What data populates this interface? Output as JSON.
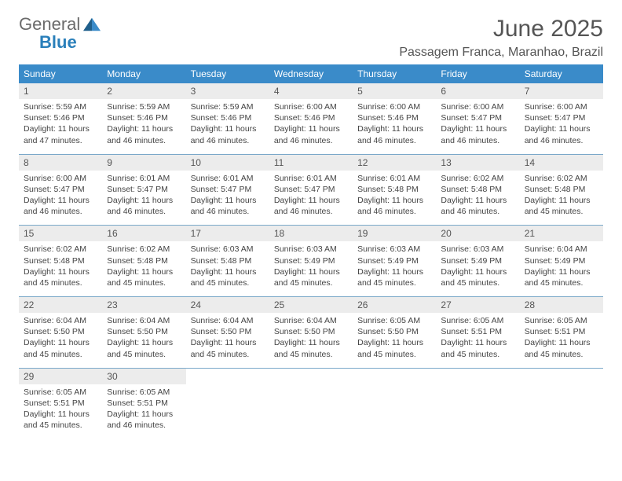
{
  "logo": {
    "word1": "General",
    "word2": "Blue"
  },
  "title": "June 2025",
  "location": "Passagem Franca, Maranhao, Brazil",
  "colors": {
    "header_bg": "#3a8bc9",
    "header_text": "#ffffff",
    "daynum_bg": "#ececec",
    "separator": "#7aa8c9",
    "logo_gray": "#6b6b6b",
    "logo_blue": "#2a7fba",
    "body_text": "#444444"
  },
  "typography": {
    "title_fontsize": 30,
    "location_fontsize": 16,
    "dayheader_fontsize": 12,
    "daynum_fontsize": 12,
    "detail_fontsize": 10.5
  },
  "day_headers": [
    "Sunday",
    "Monday",
    "Tuesday",
    "Wednesday",
    "Thursday",
    "Friday",
    "Saturday"
  ],
  "weeks": [
    {
      "nums": [
        "1",
        "2",
        "3",
        "4",
        "5",
        "6",
        "7"
      ],
      "details": [
        "Sunrise: 5:59 AM\nSunset: 5:46 PM\nDaylight: 11 hours and 47 minutes.",
        "Sunrise: 5:59 AM\nSunset: 5:46 PM\nDaylight: 11 hours and 46 minutes.",
        "Sunrise: 5:59 AM\nSunset: 5:46 PM\nDaylight: 11 hours and 46 minutes.",
        "Sunrise: 6:00 AM\nSunset: 5:46 PM\nDaylight: 11 hours and 46 minutes.",
        "Sunrise: 6:00 AM\nSunset: 5:46 PM\nDaylight: 11 hours and 46 minutes.",
        "Sunrise: 6:00 AM\nSunset: 5:47 PM\nDaylight: 11 hours and 46 minutes.",
        "Sunrise: 6:00 AM\nSunset: 5:47 PM\nDaylight: 11 hours and 46 minutes."
      ]
    },
    {
      "nums": [
        "8",
        "9",
        "10",
        "11",
        "12",
        "13",
        "14"
      ],
      "details": [
        "Sunrise: 6:00 AM\nSunset: 5:47 PM\nDaylight: 11 hours and 46 minutes.",
        "Sunrise: 6:01 AM\nSunset: 5:47 PM\nDaylight: 11 hours and 46 minutes.",
        "Sunrise: 6:01 AM\nSunset: 5:47 PM\nDaylight: 11 hours and 46 minutes.",
        "Sunrise: 6:01 AM\nSunset: 5:47 PM\nDaylight: 11 hours and 46 minutes.",
        "Sunrise: 6:01 AM\nSunset: 5:48 PM\nDaylight: 11 hours and 46 minutes.",
        "Sunrise: 6:02 AM\nSunset: 5:48 PM\nDaylight: 11 hours and 46 minutes.",
        "Sunrise: 6:02 AM\nSunset: 5:48 PM\nDaylight: 11 hours and 45 minutes."
      ]
    },
    {
      "nums": [
        "15",
        "16",
        "17",
        "18",
        "19",
        "20",
        "21"
      ],
      "details": [
        "Sunrise: 6:02 AM\nSunset: 5:48 PM\nDaylight: 11 hours and 45 minutes.",
        "Sunrise: 6:02 AM\nSunset: 5:48 PM\nDaylight: 11 hours and 45 minutes.",
        "Sunrise: 6:03 AM\nSunset: 5:48 PM\nDaylight: 11 hours and 45 minutes.",
        "Sunrise: 6:03 AM\nSunset: 5:49 PM\nDaylight: 11 hours and 45 minutes.",
        "Sunrise: 6:03 AM\nSunset: 5:49 PM\nDaylight: 11 hours and 45 minutes.",
        "Sunrise: 6:03 AM\nSunset: 5:49 PM\nDaylight: 11 hours and 45 minutes.",
        "Sunrise: 6:04 AM\nSunset: 5:49 PM\nDaylight: 11 hours and 45 minutes."
      ]
    },
    {
      "nums": [
        "22",
        "23",
        "24",
        "25",
        "26",
        "27",
        "28"
      ],
      "details": [
        "Sunrise: 6:04 AM\nSunset: 5:50 PM\nDaylight: 11 hours and 45 minutes.",
        "Sunrise: 6:04 AM\nSunset: 5:50 PM\nDaylight: 11 hours and 45 minutes.",
        "Sunrise: 6:04 AM\nSunset: 5:50 PM\nDaylight: 11 hours and 45 minutes.",
        "Sunrise: 6:04 AM\nSunset: 5:50 PM\nDaylight: 11 hours and 45 minutes.",
        "Sunrise: 6:05 AM\nSunset: 5:50 PM\nDaylight: 11 hours and 45 minutes.",
        "Sunrise: 6:05 AM\nSunset: 5:51 PM\nDaylight: 11 hours and 45 minutes.",
        "Sunrise: 6:05 AM\nSunset: 5:51 PM\nDaylight: 11 hours and 45 minutes."
      ]
    },
    {
      "nums": [
        "29",
        "30",
        "",
        "",
        "",
        "",
        ""
      ],
      "details": [
        "Sunrise: 6:05 AM\nSunset: 5:51 PM\nDaylight: 11 hours and 45 minutes.",
        "Sunrise: 6:05 AM\nSunset: 5:51 PM\nDaylight: 11 hours and 46 minutes.",
        "",
        "",
        "",
        "",
        ""
      ]
    }
  ]
}
